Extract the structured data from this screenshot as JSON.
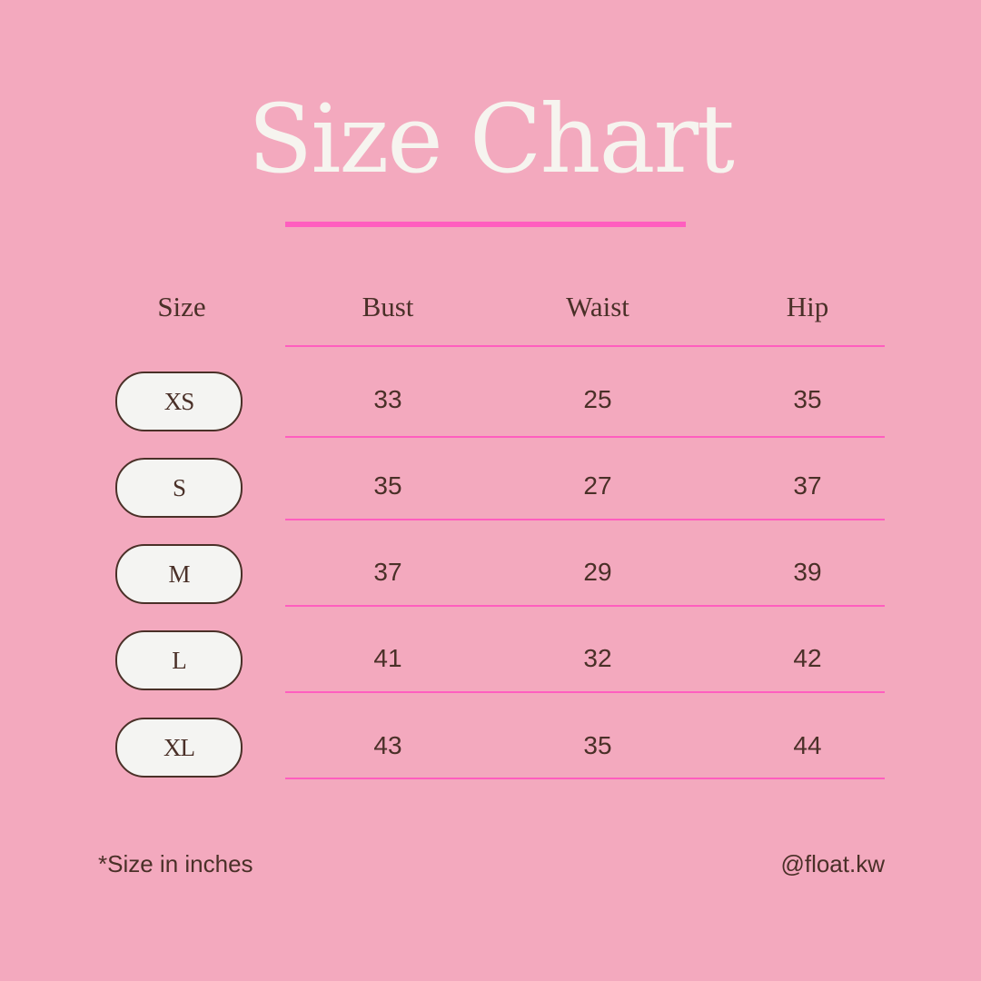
{
  "title": "Size Chart",
  "colors": {
    "background": "#F3A9BE",
    "accent": "#FF5EBF",
    "text": "#4A3028",
    "pill": "#F4F4F2"
  },
  "table": {
    "headers": [
      "Size",
      "Bust",
      "Waist",
      "Hip"
    ],
    "rows": [
      {
        "size": "XS",
        "bust": "33",
        "waist": "25",
        "hip": "35"
      },
      {
        "size": "S",
        "bust": "35",
        "waist": "27",
        "hip": "37"
      },
      {
        "size": "M",
        "bust": "37",
        "waist": "29",
        "hip": "39"
      },
      {
        "size": "L",
        "bust": "41",
        "waist": "32",
        "hip": "42"
      },
      {
        "size": "XL",
        "bust": "43",
        "waist": "35",
        "hip": "44"
      }
    ]
  },
  "footer": {
    "note": "*Size in inches",
    "handle": "@float.kw"
  }
}
